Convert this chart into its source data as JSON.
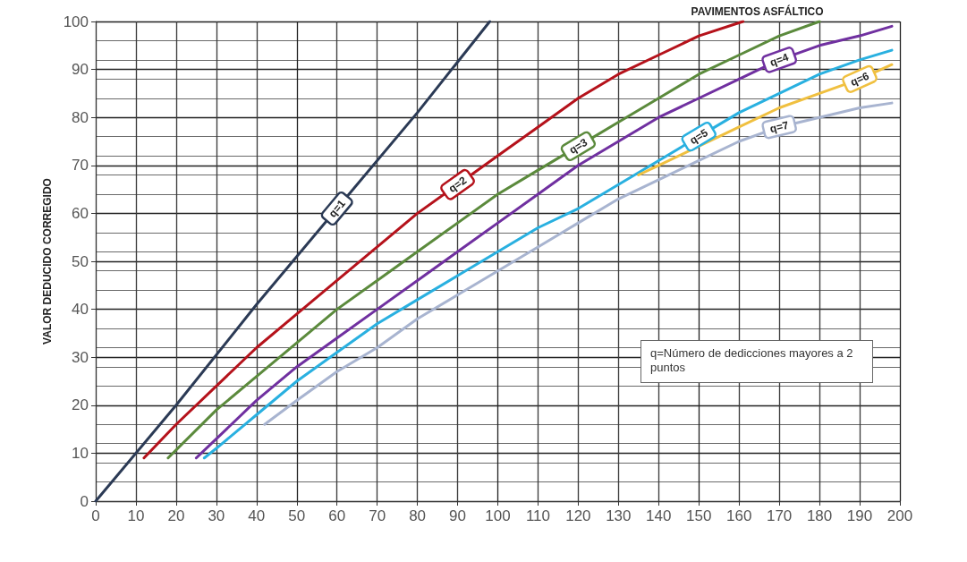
{
  "chart_data": {
    "type": "line",
    "title": "PAVIMENTOS ASFÁLTICO",
    "ylabel": "VALOR DEDUCIDO CORREGIDO",
    "annotations": [
      "q=Número de dedicciones mayores a 2 puntos"
    ],
    "xlim": [
      0,
      200
    ],
    "xticks": [
      0,
      10,
      20,
      30,
      40,
      50,
      60,
      70,
      80,
      90,
      100,
      110,
      120,
      130,
      140,
      150,
      160,
      170,
      180,
      190,
      200
    ],
    "ylim": [
      0,
      100
    ],
    "yticks": [
      0,
      10,
      20,
      30,
      40,
      50,
      60,
      70,
      80,
      90,
      100
    ],
    "grid": true,
    "legend": false,
    "marker": "none",
    "line_style": "solid",
    "series": [
      {
        "name": "q=1",
        "color": "#2b3a55",
        "x": [
          0,
          20,
          40,
          60,
          80,
          98
        ],
        "values": [
          0,
          20,
          41,
          61,
          81,
          100
        ]
      },
      {
        "name": "q=2",
        "color": "#b5121b",
        "x": [
          12,
          20,
          30,
          40,
          50,
          60,
          70,
          80,
          90,
          100,
          110,
          120,
          130,
          140,
          150,
          161
        ],
        "values": [
          9,
          16,
          24,
          32,
          39,
          46,
          53,
          60,
          66,
          72,
          78,
          84,
          89,
          93,
          97,
          100
        ]
      },
      {
        "name": "q=3",
        "color": "#5b8a3c",
        "x": [
          18,
          30,
          40,
          50,
          60,
          70,
          80,
          90,
          100,
          110,
          120,
          130,
          140,
          150,
          160,
          170,
          180
        ],
        "values": [
          9,
          19,
          26,
          33,
          40,
          46,
          52,
          58,
          64,
          69,
          74,
          79,
          84,
          89,
          93,
          97,
          100
        ]
      },
      {
        "name": "q=4",
        "color": "#7030a0",
        "x": [
          25,
          30,
          40,
          50,
          60,
          70,
          80,
          90,
          100,
          110,
          120,
          130,
          140,
          150,
          160,
          170,
          180,
          190,
          198
        ],
        "values": [
          9,
          13,
          21,
          28,
          34,
          40,
          46,
          52,
          58,
          64,
          70,
          75,
          80,
          84,
          88,
          92,
          95,
          97,
          99
        ]
      },
      {
        "name": "q=5",
        "color": "#29b0e0",
        "x": [
          27,
          30,
          40,
          50,
          60,
          70,
          80,
          90,
          100,
          110,
          120,
          130,
          140,
          150,
          160,
          170,
          180,
          190,
          198
        ],
        "values": [
          9,
          11,
          18,
          25,
          31,
          37,
          42,
          47,
          52,
          57,
          61,
          66,
          71,
          76,
          81,
          85,
          89,
          92,
          94
        ]
      },
      {
        "name": "q=6",
        "color": "#f0c040",
        "x": [
          135,
          140,
          150,
          160,
          170,
          180,
          190,
          198
        ],
        "values": [
          68,
          70,
          74,
          78,
          82,
          85,
          88,
          91
        ]
      },
      {
        "name": "q=7",
        "color": "#a8b4d0",
        "x": [
          42,
          50,
          60,
          70,
          80,
          90,
          100,
          110,
          120,
          130,
          140,
          150,
          160,
          170,
          180,
          190,
          198
        ],
        "values": [
          16,
          21,
          27,
          32,
          38,
          43,
          48,
          53,
          58,
          63,
          67,
          71,
          75,
          78,
          80,
          82,
          83
        ]
      }
    ]
  }
}
